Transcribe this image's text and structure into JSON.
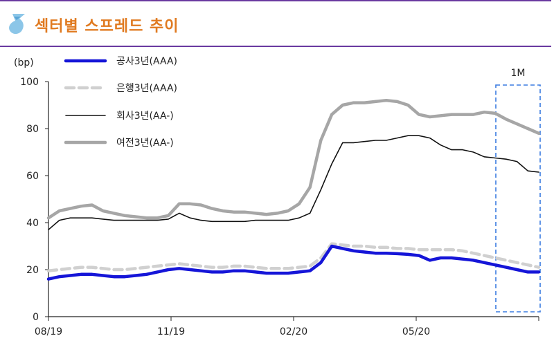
{
  "header": {
    "title": "섹터별 스프레드 추이",
    "icon": "drop-icon",
    "title_color": "#e07a20",
    "border_color": "#6a3aa0"
  },
  "chart_data": {
    "type": "line",
    "ylabel": "(bp)",
    "ylim": [
      0,
      100
    ],
    "yticks": [
      0,
      20,
      40,
      60,
      80,
      100
    ],
    "xticks": [
      "08/19",
      "11/19",
      "02/20",
      "05/20"
    ],
    "annotation": "1M",
    "highlight_color": "#3a7be0",
    "series": [
      {
        "name": "공사3년(AAA)",
        "color": "#1515d8",
        "style": "solid-thick",
        "values": [
          16,
          17,
          17.5,
          18,
          18,
          17.5,
          17,
          17,
          17.5,
          18,
          19,
          20,
          20.5,
          20,
          19.5,
          19,
          19,
          19.5,
          19.5,
          19,
          18.5,
          18.5,
          18.5,
          19,
          19.5,
          23,
          30,
          29,
          28,
          27.5,
          27,
          27,
          26.8,
          26.5,
          26,
          24,
          25,
          25,
          24.5,
          24,
          23,
          22,
          21,
          20,
          19,
          19
        ]
      },
      {
        "name": "은행3년(AAA)",
        "color": "#d0d0d0",
        "style": "dashed-thick",
        "values": [
          19.5,
          20,
          20.5,
          21,
          21,
          20.5,
          20,
          20,
          20.5,
          21,
          21.5,
          22,
          22.5,
          22,
          21.5,
          21,
          21,
          21.5,
          21.5,
          21,
          20.5,
          20.5,
          20.5,
          21,
          21.5,
          25,
          31,
          30.5,
          30,
          30,
          29.5,
          29.5,
          29,
          29,
          28.5,
          28.5,
          28.5,
          28.5,
          28,
          27,
          26,
          25,
          24,
          23,
          22,
          21
        ]
      },
      {
        "name": "회사3년(AA-)",
        "color": "#111111",
        "style": "solid-thin",
        "values": [
          37,
          41,
          42,
          42,
          42,
          41.5,
          41,
          41,
          41,
          41,
          41,
          41.5,
          44,
          42,
          41,
          40.5,
          40.5,
          40.5,
          40.5,
          41,
          41,
          41,
          41,
          42,
          44,
          54,
          65,
          74,
          74,
          74.5,
          75,
          75,
          76,
          77,
          77,
          76,
          73,
          71,
          71,
          70,
          68,
          67.5,
          67,
          66,
          62,
          61.5
        ]
      },
      {
        "name": "여전3년(AA-)",
        "color": "#a6a6a6",
        "style": "solid-thick",
        "values": [
          42,
          45,
          46,
          47,
          47.5,
          45,
          44,
          43,
          42.5,
          42,
          42,
          43,
          48,
          48,
          47.5,
          46,
          45,
          44.5,
          44.5,
          44,
          43.5,
          44,
          45,
          48,
          55,
          75,
          86,
          90,
          91,
          91,
          91.5,
          92,
          91.5,
          90,
          86,
          85,
          85.5,
          86,
          86,
          86,
          87,
          86.5,
          84,
          82,
          80,
          78
        ]
      }
    ]
  }
}
